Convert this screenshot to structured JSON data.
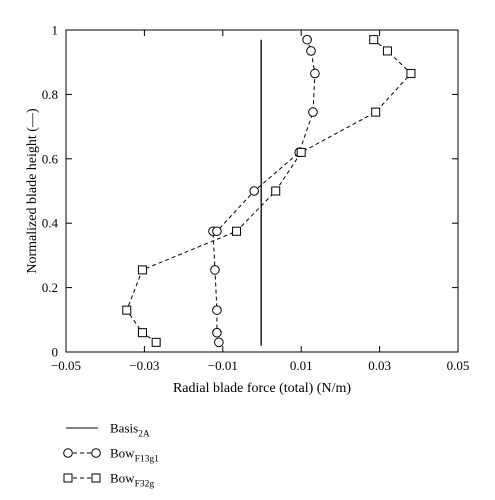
{
  "chart_data": {
    "type": "line",
    "xlabel": "Radial blade force (total) (N/m)",
    "ylabel": "Normalized blade height (—)",
    "xlim": [
      -0.05,
      0.05
    ],
    "ylim": [
      0,
      1
    ],
    "x_ticks": [
      "−0.05",
      "−0.03",
      "−0.01",
      "0.01",
      "0.03",
      "0.05"
    ],
    "x_tick_values": [
      -0.05,
      -0.03,
      -0.01,
      0.01,
      0.03,
      0.05
    ],
    "y_ticks": [
      "0",
      "0.2",
      "0.4",
      "0.6",
      "0.8",
      "1"
    ],
    "y_tick_values": [
      0,
      0.2,
      0.4,
      0.6,
      0.8,
      1
    ],
    "legend_position": "below",
    "series": [
      {
        "key": "basis",
        "name_main": "Basis",
        "name_sub": "2A",
        "style": "solid",
        "marker": "none",
        "x": [
          -0.0002,
          -0.0002
        ],
        "y": [
          0.02,
          0.97
        ]
      },
      {
        "key": "bow13",
        "name_main": "Bow",
        "name_sub": "F13g1",
        "style": "dashed",
        "marker": "circle",
        "x": [
          -0.011,
          -0.0115,
          -0.0115,
          -0.012,
          -0.0125,
          -0.0115,
          -0.002,
          0.0095,
          0.013,
          0.0135,
          0.0125,
          0.0115
        ],
        "y": [
          0.03,
          0.06,
          0.13,
          0.255,
          0.375,
          0.375,
          0.5,
          0.62,
          0.745,
          0.865,
          0.935,
          0.97
        ]
      },
      {
        "key": "bow32",
        "name_main": "Bow",
        "name_sub": "F32g",
        "style": "dashed",
        "marker": "square",
        "x": [
          -0.027,
          -0.0305,
          -0.0345,
          -0.0305,
          -0.0065,
          0.0035,
          0.01,
          0.029,
          0.038,
          0.032,
          0.0285
        ],
        "y": [
          0.03,
          0.06,
          0.13,
          0.255,
          0.375,
          0.5,
          0.62,
          0.745,
          0.865,
          0.935,
          0.97
        ]
      }
    ]
  }
}
